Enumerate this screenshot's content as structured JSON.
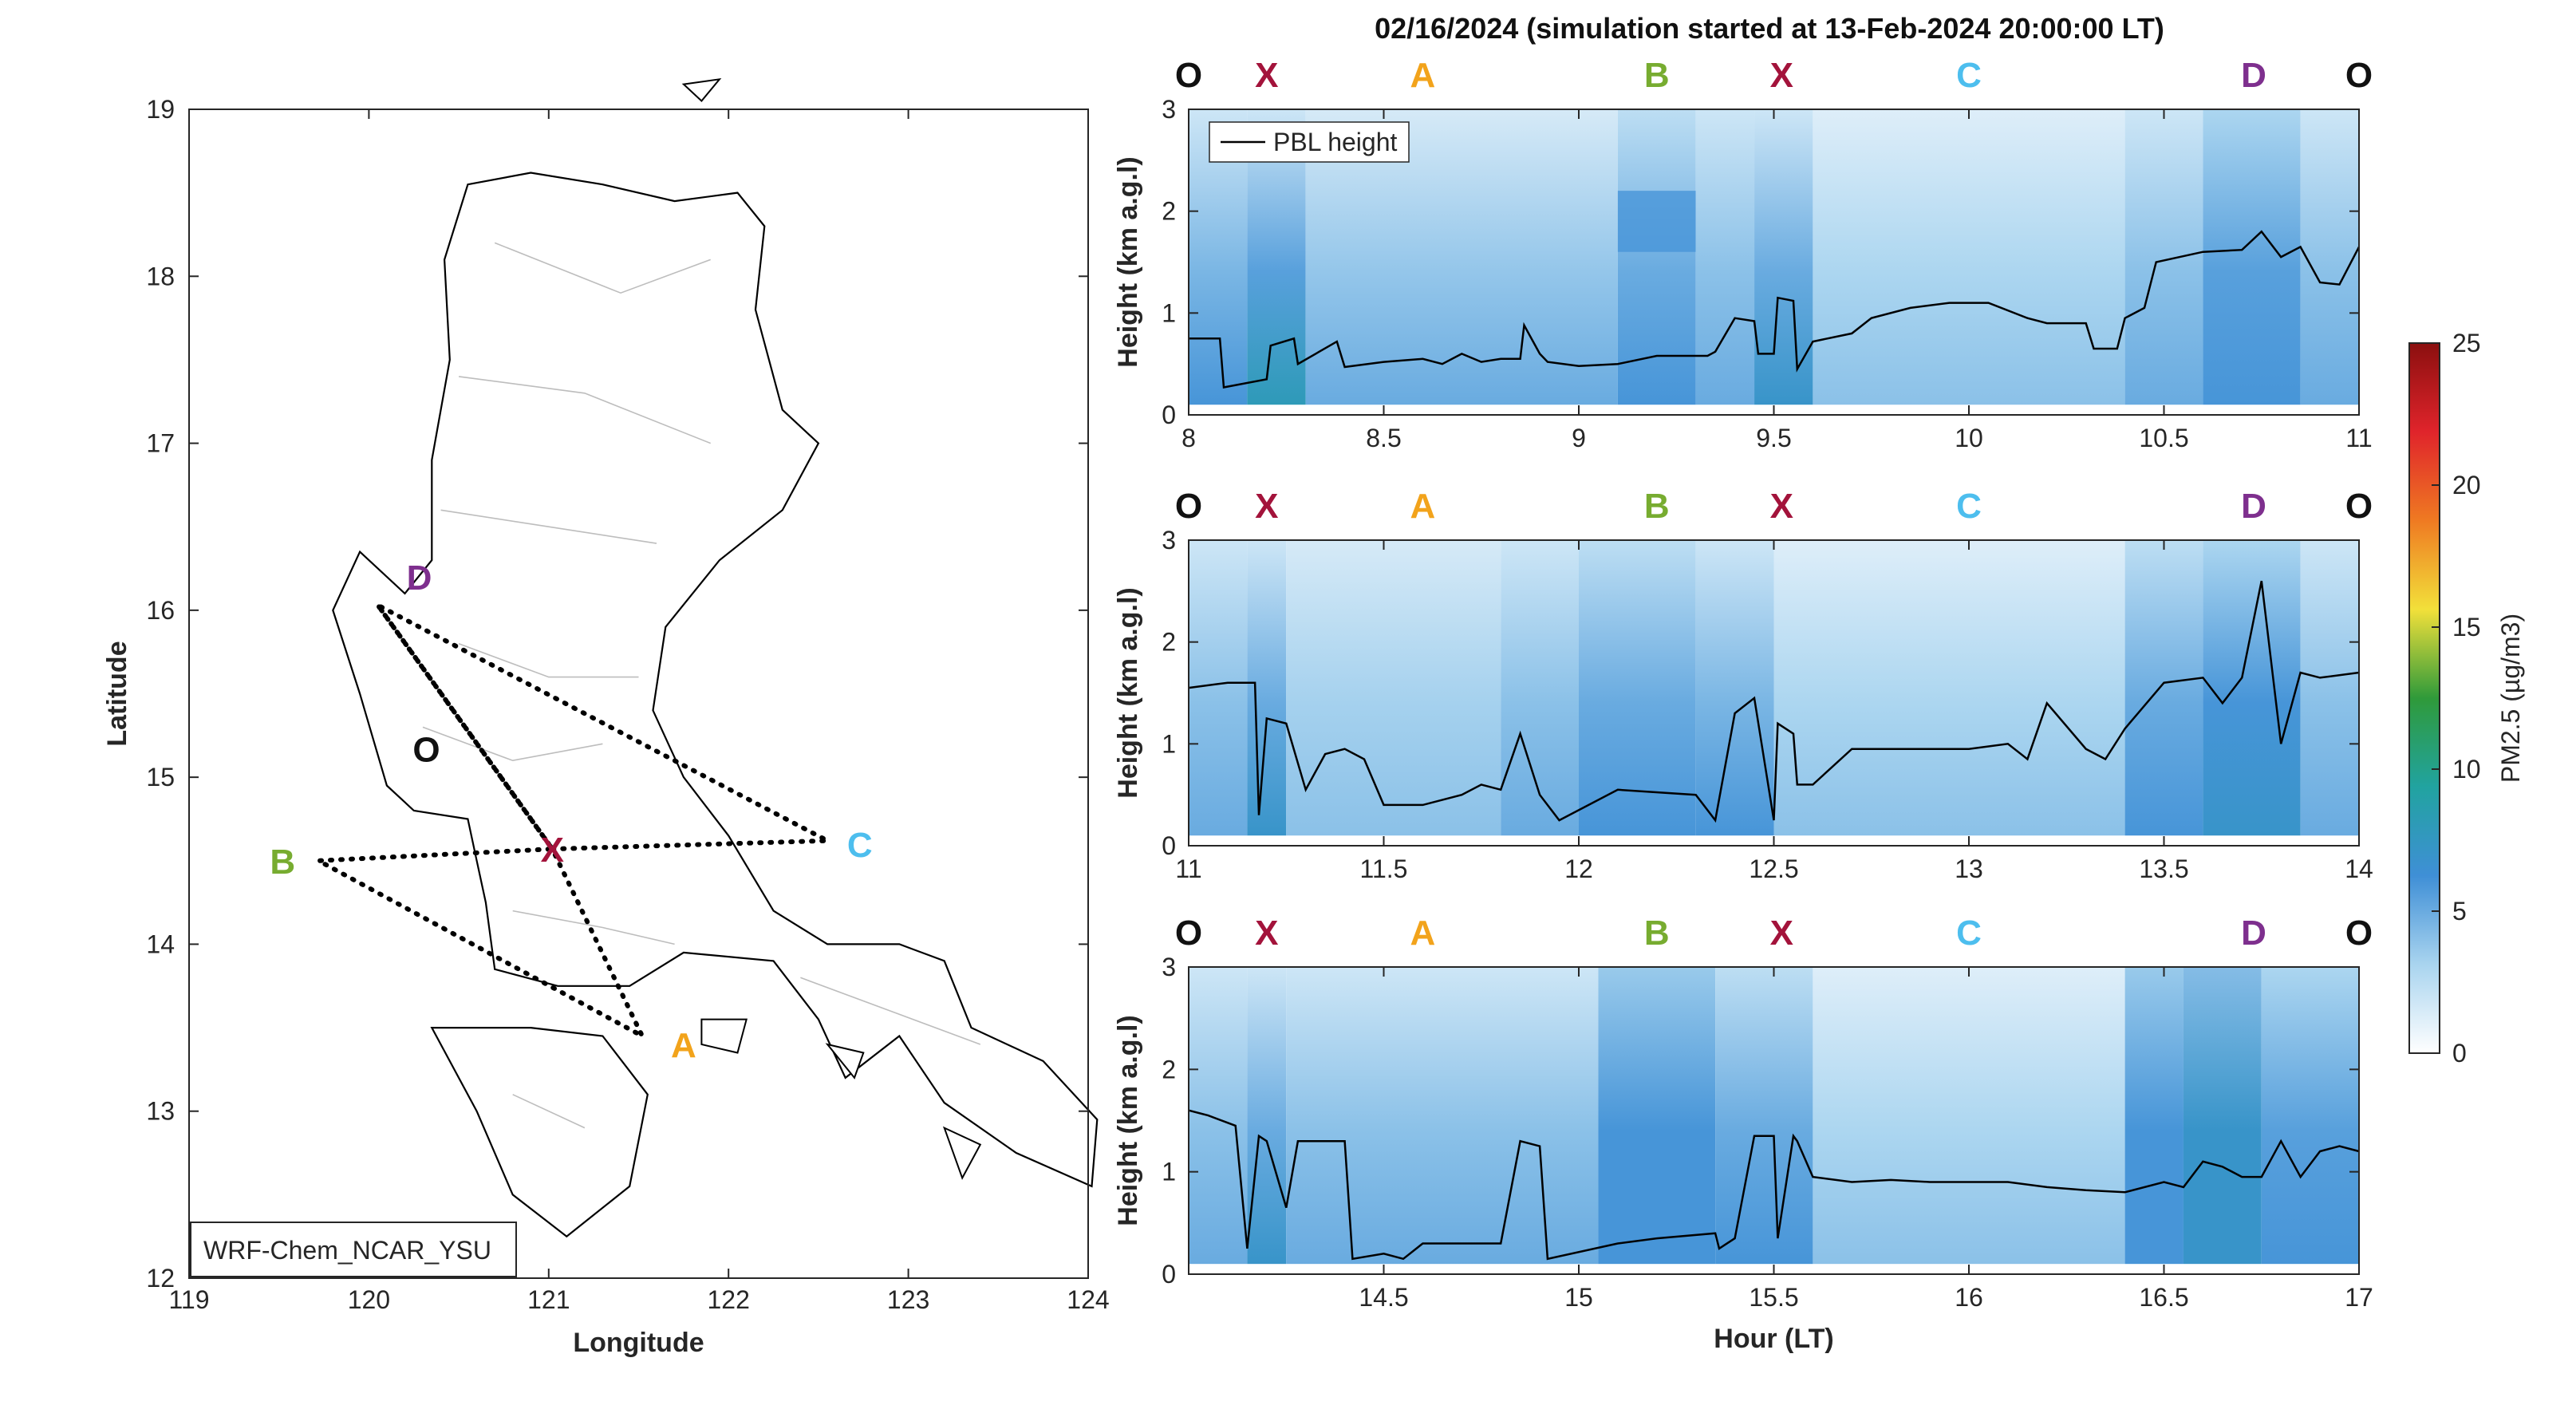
{
  "title": "02/16/2024 (simulation started at 13-Feb-2024 20:00:00 LT)",
  "colors": {
    "O": "#111111",
    "X": "#a3133b",
    "A": "#f2a31b",
    "B": "#77ac30",
    "C": "#4dbeee",
    "D": "#7e2f8e",
    "pbl": "#000000",
    "route": "#000000"
  },
  "chart_data": [
    {
      "type": "map",
      "xlabel": "Longitude",
      "ylabel": "Latitude",
      "xlim": [
        119,
        124
      ],
      "ylim": [
        12,
        19
      ],
      "xticks": [
        "119",
        "120",
        "121",
        "122",
        "123",
        "124"
      ],
      "yticks": [
        "12",
        "13",
        "14",
        "15",
        "16",
        "17",
        "18",
        "19"
      ],
      "model_label": "WRF-Chem_NCAR_YSU",
      "sites": [
        {
          "name": "O",
          "lon": 120.32,
          "lat": 15.17
        },
        {
          "name": "X",
          "lon": 121.02,
          "lat": 14.57
        },
        {
          "name": "A",
          "lon": 121.75,
          "lat": 13.4
        },
        {
          "name": "B",
          "lon": 119.52,
          "lat": 14.5
        },
        {
          "name": "C",
          "lon": 122.73,
          "lat": 14.6
        },
        {
          "name": "D",
          "lon": 120.28,
          "lat": 16.2
        }
      ],
      "route": [
        [
          121.02,
          14.57
        ],
        [
          122.55,
          14.62
        ],
        [
          120.05,
          16.03
        ],
        [
          121.02,
          14.57
        ],
        [
          121.52,
          13.45
        ],
        [
          119.72,
          14.5
        ],
        [
          121.02,
          14.57
        ],
        [
          120.05,
          16.03
        ]
      ]
    },
    {
      "type": "heatmap",
      "xlabel": "",
      "ylabel": "Height (km a.g.l)",
      "xlim": [
        8,
        11
      ],
      "ylim": [
        0,
        3
      ],
      "xticks": [
        "8",
        "8.5",
        "9",
        "9.5",
        "10",
        "10.5",
        "11"
      ],
      "yticks": [
        "0",
        "1",
        "2",
        "3"
      ],
      "legend": "PBL height",
      "site_labels": [
        {
          "name": "O",
          "hour": 8.0
        },
        {
          "name": "X",
          "hour": 8.2
        },
        {
          "name": "A",
          "hour": 8.6
        },
        {
          "name": "B",
          "hour": 9.2
        },
        {
          "name": "X",
          "hour": 9.52
        },
        {
          "name": "C",
          "hour": 10.0
        },
        {
          "name": "D",
          "hour": 10.73
        },
        {
          "name": "O",
          "hour": 11.0
        }
      ],
      "pbl": {
        "hour": [
          8.0,
          8.08,
          8.09,
          8.2,
          8.21,
          8.27,
          8.28,
          8.38,
          8.4,
          8.5,
          8.6,
          8.65,
          8.7,
          8.75,
          8.8,
          8.85,
          8.86,
          8.9,
          8.92,
          9.0,
          9.1,
          9.2,
          9.33,
          9.35,
          9.4,
          9.45,
          9.46,
          9.5,
          9.51,
          9.55,
          9.56,
          9.6,
          9.7,
          9.75,
          9.85,
          9.95,
          10.05,
          10.15,
          10.2,
          10.3,
          10.32,
          10.38,
          10.4,
          10.45,
          10.48,
          10.6,
          10.7,
          10.75,
          10.8,
          10.85,
          10.9,
          10.95,
          11.0
        ],
        "km": [
          0.75,
          0.75,
          0.27,
          0.35,
          0.68,
          0.75,
          0.5,
          0.72,
          0.47,
          0.52,
          0.55,
          0.5,
          0.6,
          0.52,
          0.55,
          0.55,
          0.88,
          0.6,
          0.52,
          0.48,
          0.5,
          0.58,
          0.58,
          0.62,
          0.95,
          0.92,
          0.6,
          0.6,
          1.15,
          1.12,
          0.45,
          0.72,
          0.8,
          0.95,
          1.05,
          1.1,
          1.1,
          0.95,
          0.9,
          0.9,
          0.65,
          0.65,
          0.95,
          1.05,
          1.5,
          1.6,
          1.62,
          1.8,
          1.55,
          1.65,
          1.3,
          1.28,
          1.65
        ]
      },
      "pm25_columns": [
        {
          "from": 8.0,
          "to": 8.15,
          "surface": 6,
          "top": 3
        },
        {
          "from": 8.15,
          "to": 8.3,
          "surface": 8,
          "top": 3
        },
        {
          "from": 8.3,
          "to": 9.1,
          "surface": 5,
          "top": 2.5
        },
        {
          "from": 9.1,
          "to": 9.3,
          "surface": 6,
          "top": 4,
          "aloft": {
            "km": [
              1.6,
              2.2
            ],
            "value": 6
          }
        },
        {
          "from": 9.3,
          "to": 9.45,
          "surface": 5,
          "top": 3
        },
        {
          "from": 9.45,
          "to": 9.6,
          "surface": 7,
          "top": 3
        },
        {
          "from": 9.6,
          "to": 10.4,
          "surface": 4,
          "top": 2
        },
        {
          "from": 10.4,
          "to": 10.6,
          "surface": 5,
          "top": 3
        },
        {
          "from": 10.6,
          "to": 10.85,
          "surface": 6,
          "top": 5
        },
        {
          "from": 10.85,
          "to": 11.0,
          "surface": 5,
          "top": 3
        }
      ]
    },
    {
      "type": "heatmap",
      "xlabel": "",
      "ylabel": "Height (km a.g.l)",
      "xlim": [
        11,
        14
      ],
      "ylim": [
        0,
        3
      ],
      "xticks": [
        "11",
        "11.5",
        "12",
        "12.5",
        "13",
        "13.5",
        "14"
      ],
      "yticks": [
        "0",
        "1",
        "2",
        "3"
      ],
      "site_labels": [
        {
          "name": "O",
          "hour": 11.0
        },
        {
          "name": "X",
          "hour": 11.2
        },
        {
          "name": "A",
          "hour": 11.6
        },
        {
          "name": "B",
          "hour": 12.2
        },
        {
          "name": "X",
          "hour": 12.52
        },
        {
          "name": "C",
          "hour": 13.0
        },
        {
          "name": "D",
          "hour": 13.73
        },
        {
          "name": "O",
          "hour": 14.0
        }
      ],
      "pbl": {
        "hour": [
          11.0,
          11.1,
          11.17,
          11.18,
          11.2,
          11.25,
          11.3,
          11.35,
          11.4,
          11.45,
          11.5,
          11.6,
          11.7,
          11.75,
          11.8,
          11.85,
          11.9,
          11.95,
          12.1,
          12.3,
          12.35,
          12.4,
          12.45,
          12.5,
          12.51,
          12.55,
          12.56,
          12.6,
          12.7,
          12.8,
          12.9,
          13.0,
          13.1,
          13.15,
          13.2,
          13.3,
          13.35,
          13.4,
          13.5,
          13.6,
          13.65,
          13.7,
          13.75,
          13.8,
          13.85,
          13.9,
          14.0
        ],
        "km": [
          1.55,
          1.6,
          1.6,
          0.3,
          1.25,
          1.2,
          0.55,
          0.9,
          0.95,
          0.85,
          0.4,
          0.4,
          0.5,
          0.6,
          0.55,
          1.1,
          0.5,
          0.25,
          0.55,
          0.5,
          0.25,
          1.3,
          1.45,
          0.25,
          1.2,
          1.1,
          0.6,
          0.6,
          0.95,
          0.95,
          0.95,
          0.95,
          1.0,
          0.85,
          1.4,
          0.95,
          0.85,
          1.15,
          1.6,
          1.65,
          1.4,
          1.65,
          2.6,
          1.0,
          1.7,
          1.65,
          1.7
        ]
      },
      "pm25_columns": [
        {
          "from": 11.0,
          "to": 11.15,
          "surface": 5,
          "top": 3
        },
        {
          "from": 11.15,
          "to": 11.25,
          "surface": 7,
          "top": 3
        },
        {
          "from": 11.25,
          "to": 11.8,
          "surface": 4,
          "top": 2.5
        },
        {
          "from": 11.8,
          "to": 12.0,
          "surface": 5,
          "top": 3
        },
        {
          "from": 12.0,
          "to": 12.3,
          "surface": 6,
          "top": 4
        },
        {
          "from": 12.3,
          "to": 12.5,
          "surface": 6,
          "top": 3
        },
        {
          "from": 12.5,
          "to": 13.4,
          "surface": 4,
          "top": 2
        },
        {
          "from": 13.4,
          "to": 13.6,
          "surface": 6,
          "top": 4
        },
        {
          "from": 13.6,
          "to": 13.85,
          "surface": 7,
          "top": 5
        },
        {
          "from": 13.85,
          "to": 14.0,
          "surface": 5,
          "top": 3
        }
      ]
    },
    {
      "type": "heatmap",
      "xlabel": "Hour (LT)",
      "ylabel": "Height (km a.g.l)",
      "xlim": [
        14,
        17
      ],
      "ylim": [
        0,
        3
      ],
      "xticks": [
        "14.5",
        "15",
        "15.5",
        "16",
        "16.5",
        "17"
      ],
      "yticks": [
        "0",
        "1",
        "2",
        "3"
      ],
      "site_labels": [
        {
          "name": "O",
          "hour": 14.0
        },
        {
          "name": "X",
          "hour": 14.2
        },
        {
          "name": "A",
          "hour": 14.6
        },
        {
          "name": "B",
          "hour": 15.2
        },
        {
          "name": "X",
          "hour": 15.52
        },
        {
          "name": "C",
          "hour": 16.0
        },
        {
          "name": "D",
          "hour": 16.73
        },
        {
          "name": "O",
          "hour": 17.0
        }
      ],
      "pbl": {
        "hour": [
          14.0,
          14.05,
          14.12,
          14.15,
          14.18,
          14.2,
          14.25,
          14.28,
          14.3,
          14.4,
          14.42,
          14.5,
          14.55,
          14.6,
          14.7,
          14.8,
          14.85,
          14.9,
          14.92,
          15.1,
          15.2,
          15.35,
          15.36,
          15.4,
          15.45,
          15.5,
          15.51,
          15.55,
          15.56,
          15.6,
          15.7,
          15.8,
          15.9,
          16.0,
          16.1,
          16.2,
          16.3,
          16.4,
          16.5,
          16.55,
          16.6,
          16.65,
          16.7,
          16.75,
          16.8,
          16.85,
          16.9,
          16.95,
          17.0
        ],
        "km": [
          1.6,
          1.55,
          1.45,
          0.25,
          1.35,
          1.3,
          0.65,
          1.3,
          1.3,
          1.3,
          0.15,
          0.2,
          0.15,
          0.3,
          0.3,
          0.3,
          1.3,
          1.25,
          0.15,
          0.3,
          0.35,
          0.4,
          0.25,
          0.35,
          1.35,
          1.35,
          0.35,
          1.35,
          1.3,
          0.95,
          0.9,
          0.92,
          0.9,
          0.9,
          0.9,
          0.85,
          0.82,
          0.8,
          0.9,
          0.85,
          1.1,
          1.05,
          0.95,
          0.95,
          1.3,
          0.95,
          1.2,
          1.25,
          1.2
        ]
      },
      "pm25_columns": [
        {
          "from": 14.0,
          "to": 14.15,
          "surface": 5,
          "top": 3
        },
        {
          "from": 14.15,
          "to": 14.25,
          "surface": 7,
          "top": 3
        },
        {
          "from": 14.25,
          "to": 15.05,
          "surface": 5,
          "top": 3
        },
        {
          "from": 15.05,
          "to": 15.35,
          "surface": 6,
          "top": 6
        },
        {
          "from": 15.35,
          "to": 15.6,
          "surface": 6,
          "top": 4
        },
        {
          "from": 15.6,
          "to": 16.4,
          "surface": 4,
          "top": 2
        },
        {
          "from": 16.4,
          "to": 16.55,
          "surface": 6,
          "top": 6
        },
        {
          "from": 16.55,
          "to": 16.75,
          "surface": 7,
          "top": 7
        },
        {
          "from": 16.75,
          "to": 17.0,
          "surface": 6,
          "top": 5
        }
      ]
    },
    {
      "type": "colorbar",
      "label": "PM2.5 (µg/m3)",
      "range": [
        0,
        25
      ],
      "ticks": [
        "0",
        "5",
        "10",
        "15",
        "20",
        "25"
      ],
      "colormap": [
        "#ffffff",
        "#a9d4ef",
        "#3f8fd6",
        "#21a3a0",
        "#2f9a3a",
        "#f2e03a",
        "#ef7a22",
        "#e0242b",
        "#8b0f0f"
      ]
    }
  ]
}
